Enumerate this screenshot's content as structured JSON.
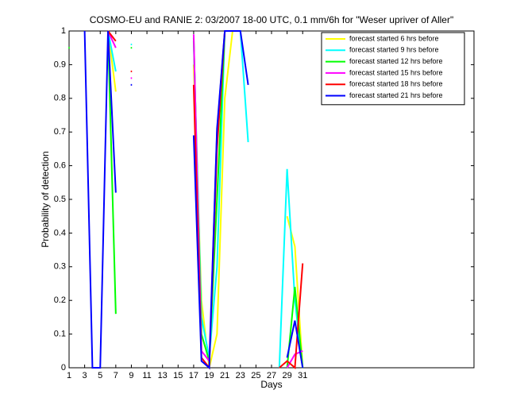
{
  "chart_data": {
    "type": "line",
    "title": "COSMO-EU and RANIE 2: 03/2007 18-00 UTC, 0.1 mm/6h for \"Weser upriver of Aller\"",
    "x_label": "Days",
    "y_label": "Probability of detection",
    "x": [
      1,
      2,
      3,
      4,
      5,
      6,
      7,
      8,
      9,
      10,
      11,
      12,
      13,
      14,
      15,
      16,
      17,
      18,
      19,
      20,
      21,
      22,
      23,
      24,
      25,
      26,
      27,
      28,
      29,
      30,
      31
    ],
    "series": [
      {
        "name": "forecast started 6 hrs before",
        "color": "#ffff00",
        "values": [
          null,
          null,
          null,
          null,
          null,
          1,
          0.82,
          null,
          null,
          null,
          null,
          null,
          null,
          null,
          null,
          null,
          0.9,
          0.2,
          0,
          0.1,
          0.8,
          1,
          1,
          null,
          null,
          null,
          null,
          null,
          0.45,
          0.36,
          0
        ]
      },
      {
        "name": "forecast started 9 hrs before",
        "color": "#00ffff",
        "values": [
          null,
          null,
          null,
          null,
          null,
          1,
          0.88,
          null,
          0.96,
          null,
          null,
          null,
          null,
          null,
          null,
          null,
          0.97,
          0.15,
          0.03,
          0.3,
          1,
          1,
          1,
          0.67,
          null,
          null,
          null,
          0,
          0.59,
          0.2,
          0
        ]
      },
      {
        "name": "forecast started 12 hrs before",
        "color": "#00ff00",
        "values": [
          0.95,
          null,
          null,
          null,
          null,
          1,
          0.16,
          null,
          0.95,
          null,
          null,
          null,
          null,
          null,
          null,
          null,
          0.98,
          0.1,
          0.02,
          0.5,
          1,
          1,
          1,
          null,
          null,
          null,
          null,
          null,
          0,
          0.24,
          0
        ]
      },
      {
        "name": "forecast started 15 hrs before",
        "color": "#ff00ff",
        "values": [
          null,
          null,
          null,
          null,
          null,
          1,
          0.95,
          null,
          0.86,
          null,
          null,
          null,
          null,
          null,
          null,
          null,
          0.99,
          0.05,
          0.02,
          0.7,
          1,
          1,
          1,
          null,
          null,
          null,
          null,
          null,
          0,
          0.04,
          0.05
        ]
      },
      {
        "name": "forecast started 18 hrs before",
        "color": "#ff0000",
        "values": [
          null,
          null,
          null,
          null,
          null,
          1,
          0.97,
          null,
          0.88,
          null,
          null,
          null,
          null,
          null,
          null,
          null,
          0.84,
          0.03,
          0,
          0.65,
          1,
          1,
          1,
          null,
          null,
          null,
          null,
          0,
          0.02,
          0,
          0.31
        ]
      },
      {
        "name": "forecast started 21 hrs before",
        "color": "#0000ff",
        "values": [
          null,
          null,
          1,
          0,
          0,
          1,
          0.52,
          null,
          0.84,
          null,
          null,
          null,
          null,
          null,
          null,
          null,
          0.69,
          0.02,
          0,
          0.71,
          1,
          1,
          1,
          0.84,
          null,
          null,
          null,
          null,
          0.03,
          0.14,
          0
        ]
      }
    ],
    "xlim": [
      1,
      53
    ],
    "ylim": [
      0,
      1
    ],
    "xticks": [
      1,
      3,
      5,
      7,
      9,
      11,
      13,
      15,
      17,
      19,
      21,
      23,
      25,
      27,
      29,
      31
    ],
    "yticks": [
      0,
      0.1,
      0.2,
      0.3,
      0.4,
      0.5,
      0.6,
      0.7,
      0.8,
      0.9,
      1
    ],
    "legend": "upper right"
  }
}
